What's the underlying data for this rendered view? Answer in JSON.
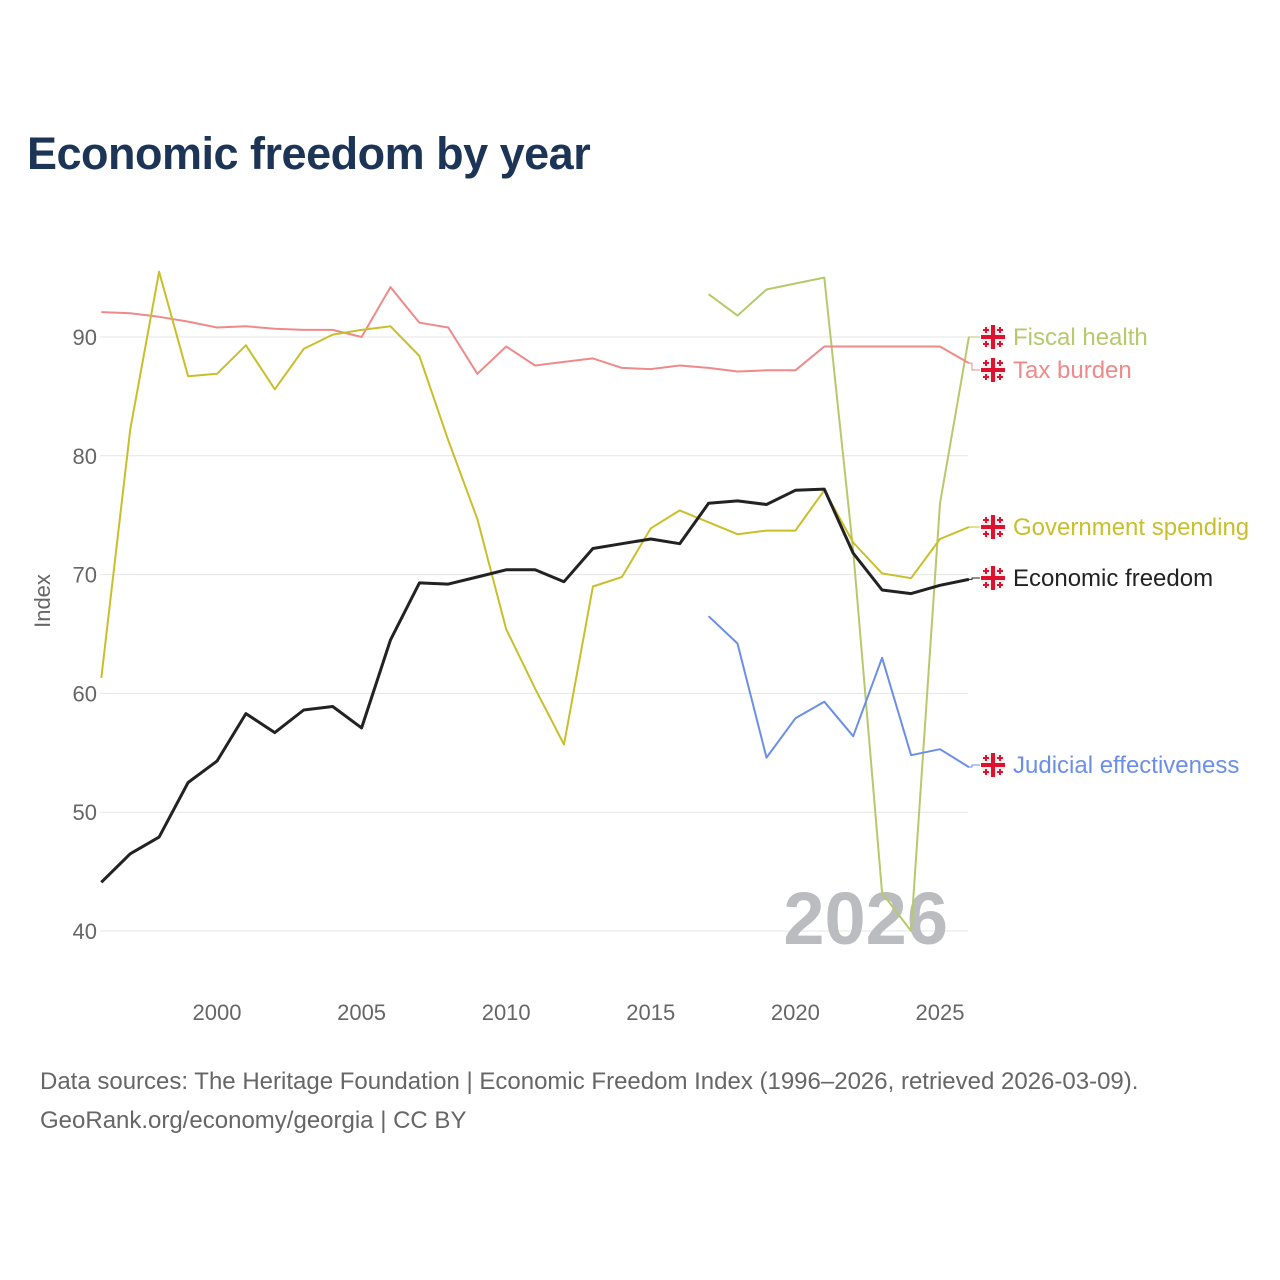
{
  "title": "Economic freedom by year",
  "footer": {
    "line1": "Data sources: The Heritage Foundation | Economic Freedom Index (1996–2026, retrieved 2026-03-09).",
    "line2": "GeoRank.org/economy/georgia | CC BY"
  },
  "chart_data": {
    "type": "line",
    "title": "Economic freedom by year",
    "xlabel": "",
    "ylabel": "Index",
    "xlim": [
      1996,
      2026
    ],
    "ylim": [
      40,
      95
    ],
    "xticks": [
      2000,
      2005,
      2010,
      2015,
      2020,
      2025
    ],
    "yticks": [
      40,
      50,
      60,
      70,
      80,
      90
    ],
    "grid": true,
    "watermark_year": "2026",
    "legend_placement": "right (end-of-line labels)",
    "legend_icon": "georgia-flag-icon",
    "series": [
      {
        "name": "Fiscal health",
        "color": "#b6c96b",
        "x": [
          2017,
          2018,
          2019,
          2020,
          2021,
          2022,
          2023,
          2024,
          2025,
          2026
        ],
        "values": [
          93.6,
          91.8,
          94.0,
          94.5,
          95.0,
          72.0,
          43.2,
          40.0,
          76.0,
          90.0
        ]
      },
      {
        "name": "Tax burden",
        "color": "#ef8a8a",
        "x": [
          1996,
          1997,
          1998,
          1999,
          2000,
          2001,
          2002,
          2003,
          2004,
          2005,
          2006,
          2007,
          2008,
          2009,
          2010,
          2011,
          2012,
          2013,
          2014,
          2015,
          2016,
          2017,
          2018,
          2019,
          2020,
          2021,
          2022,
          2023,
          2024,
          2025,
          2026
        ],
        "values": [
          92.1,
          92.0,
          91.7,
          91.3,
          90.8,
          90.9,
          90.7,
          90.6,
          90.6,
          90.0,
          94.2,
          91.2,
          90.8,
          86.9,
          89.2,
          87.6,
          87.9,
          88.2,
          87.4,
          87.3,
          87.6,
          87.4,
          87.1,
          87.2,
          87.2,
          89.2,
          89.2,
          89.2,
          89.2,
          89.2,
          87.8
        ]
      },
      {
        "name": "Government spending",
        "color": "#c9bf2a",
        "x": [
          1996,
          1997,
          1998,
          1999,
          2000,
          2001,
          2002,
          2003,
          2004,
          2005,
          2006,
          2007,
          2008,
          2009,
          2010,
          2011,
          2012,
          2013,
          2014,
          2015,
          2016,
          2017,
          2018,
          2019,
          2020,
          2021,
          2022,
          2023,
          2024,
          2025,
          2026
        ],
        "values": [
          61.3,
          82.2,
          95.5,
          86.7,
          86.9,
          89.3,
          85.6,
          89.0,
          90.2,
          90.6,
          90.9,
          88.4,
          81.3,
          74.7,
          65.4,
          60.4,
          55.7,
          69.0,
          69.8,
          73.9,
          75.4,
          74.4,
          73.4,
          73.7,
          73.7,
          77.1,
          72.7,
          70.1,
          69.7,
          73.0,
          74.0
        ]
      },
      {
        "name": "Economic freedom",
        "color": "#222222",
        "x": [
          1996,
          1997,
          1998,
          1999,
          2000,
          2001,
          2002,
          2003,
          2004,
          2005,
          2006,
          2007,
          2008,
          2009,
          2010,
          2011,
          2012,
          2013,
          2014,
          2015,
          2016,
          2017,
          2018,
          2019,
          2020,
          2021,
          2022,
          2023,
          2024,
          2025,
          2026
        ],
        "values": [
          44.1,
          46.5,
          47.9,
          52.5,
          54.3,
          58.3,
          56.7,
          58.6,
          58.9,
          57.1,
          64.5,
          69.3,
          69.2,
          69.8,
          70.4,
          70.4,
          69.4,
          72.2,
          72.6,
          73.0,
          72.6,
          76.0,
          76.2,
          75.9,
          77.1,
          77.2,
          71.8,
          68.7,
          68.4,
          69.1,
          69.6
        ]
      },
      {
        "name": "Judicial effectiveness",
        "color": "#6b8ee8",
        "x": [
          2017,
          2018,
          2019,
          2020,
          2021,
          2022,
          2023,
          2024,
          2025,
          2026
        ],
        "values": [
          66.5,
          64.2,
          54.6,
          57.9,
          59.3,
          56.4,
          63.0,
          54.8,
          55.3,
          53.8
        ]
      }
    ]
  }
}
